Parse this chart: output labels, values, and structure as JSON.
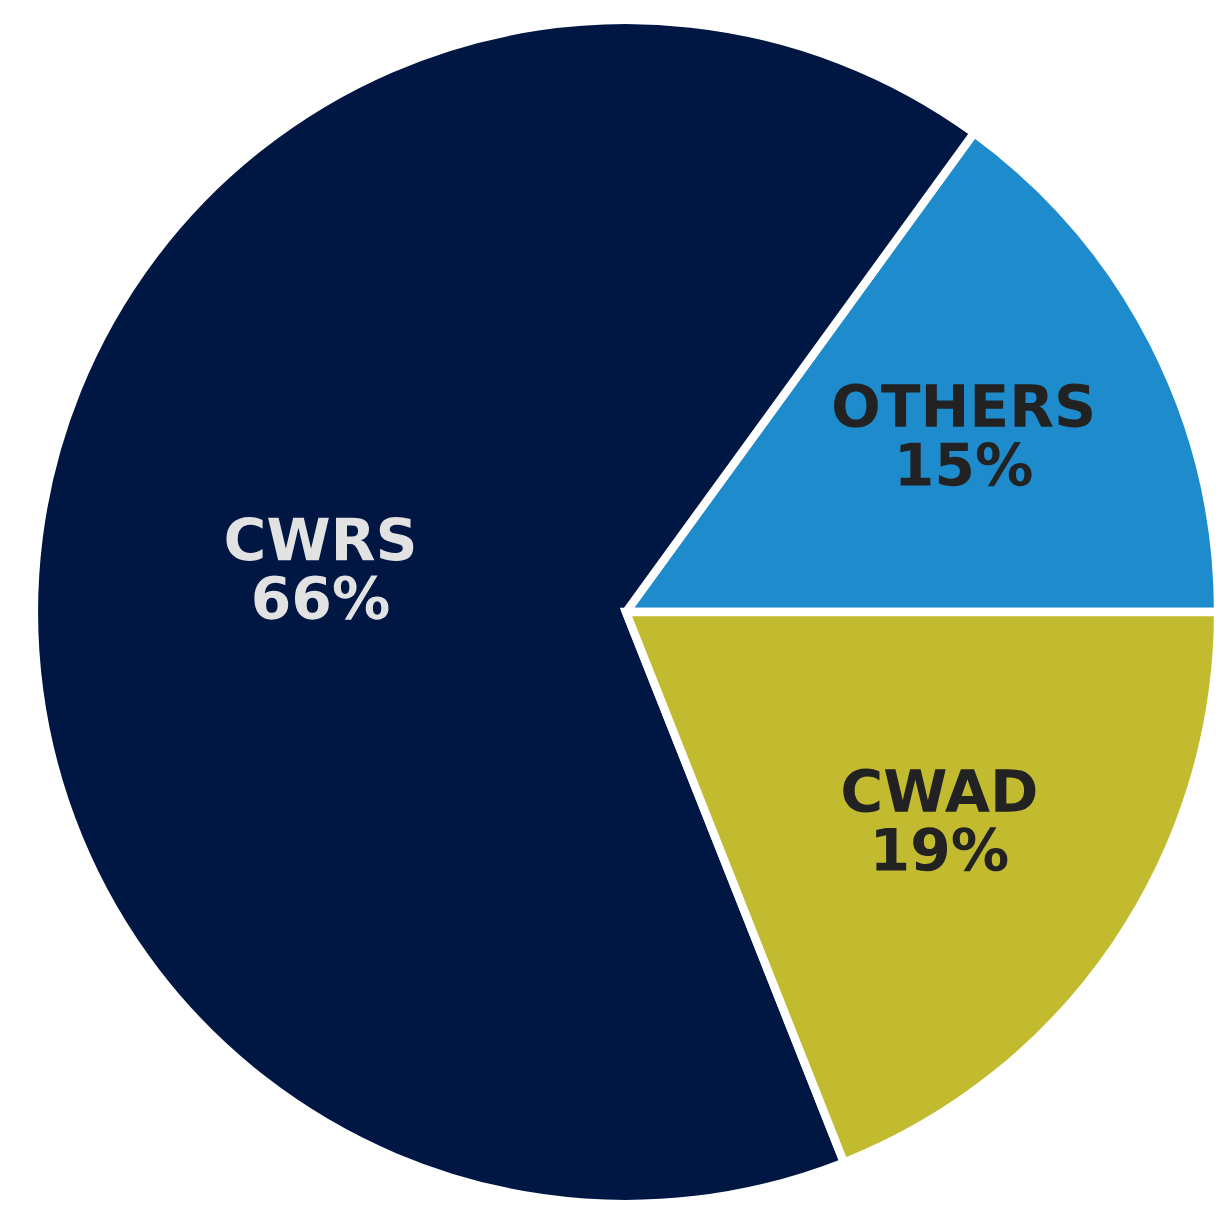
{
  "chart_data": {
    "type": "pie",
    "categories": [
      "OTHERS",
      "CWRS",
      "CWAD"
    ],
    "values": [
      15,
      66,
      19
    ],
    "colors": [
      "#1e8ccc",
      "#001744",
      "#c2bb30"
    ],
    "value_labels": [
      "15%",
      "66%",
      "19%"
    ],
    "legend": false
  }
}
